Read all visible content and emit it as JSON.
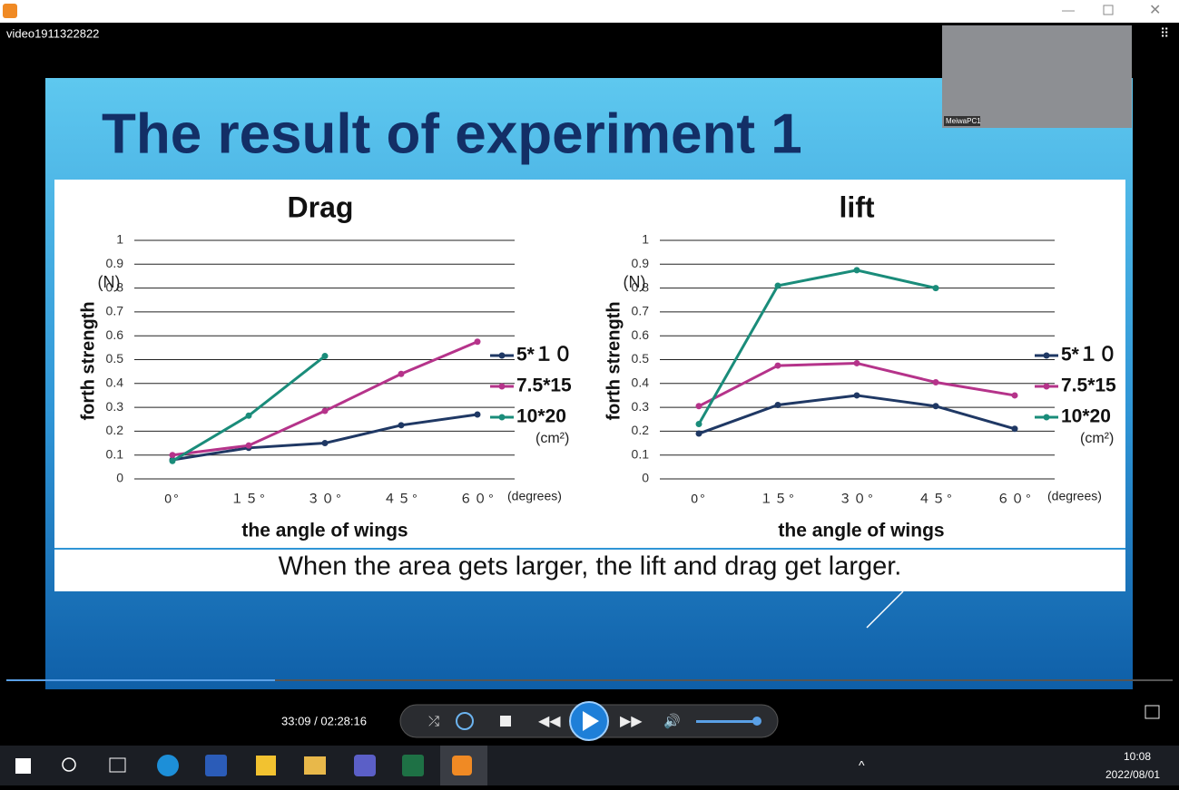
{
  "window": {
    "title": "video1911322822"
  },
  "slide": {
    "title": "The result of experiment 1",
    "caption": "When the area gets larger, the lift and drag get larger."
  },
  "webcam": {
    "label": "MeiwaPC1"
  },
  "player": {
    "time": "33:09 / 02:28:16"
  },
  "taskbar": {
    "time": "10:08",
    "date": "2022/08/01"
  },
  "chart_data": [
    {
      "type": "line",
      "title": "Drag",
      "ylabel": "forth strength",
      "yunit": "(N)",
      "xlabel": "the angle of wings",
      "xunit": "(degrees)",
      "legend_unit": "(cm²)",
      "categories": [
        "0°",
        "１５°",
        "３０°",
        "４５°",
        "６０°"
      ],
      "ylim": [
        0,
        1
      ],
      "yticks": [
        0,
        0.1,
        0.2,
        0.3,
        0.4,
        0.5,
        0.6,
        0.7,
        0.8,
        0.9,
        1
      ],
      "grid": true,
      "legend": "right",
      "series": [
        {
          "name": "5*１０",
          "color": "#1f3864",
          "values": [
            0.08,
            0.13,
            0.15,
            0.225,
            0.27
          ]
        },
        {
          "name": "7.5*15",
          "color": "#b5338a",
          "values": [
            0.1,
            0.14,
            0.285,
            0.44,
            0.575
          ]
        },
        {
          "name": "10*20",
          "color": "#1a8c7a",
          "values": [
            0.075,
            0.265,
            0.515,
            null,
            null
          ]
        }
      ]
    },
    {
      "type": "line",
      "title": "lift",
      "ylabel": "forth strength",
      "yunit": "(N)",
      "xlabel": "the angle of wings",
      "xunit": "(degrees)",
      "legend_unit": "(cm²)",
      "categories": [
        "0°",
        "１５°",
        "３０°",
        "４５°",
        "６０°"
      ],
      "ylim": [
        0,
        1
      ],
      "yticks": [
        0,
        0.1,
        0.2,
        0.3,
        0.4,
        0.5,
        0.6,
        0.7,
        0.8,
        0.9,
        1
      ],
      "grid": true,
      "legend": "right",
      "series": [
        {
          "name": "5*１０",
          "color": "#1f3864",
          "values": [
            0.19,
            0.31,
            0.35,
            0.305,
            0.21
          ]
        },
        {
          "name": "7.5*15",
          "color": "#b5338a",
          "values": [
            0.305,
            0.475,
            0.485,
            0.405,
            0.35
          ]
        },
        {
          "name": "10*20",
          "color": "#1a8c7a",
          "values": [
            0.23,
            0.81,
            0.875,
            0.8,
            null
          ]
        }
      ]
    }
  ]
}
